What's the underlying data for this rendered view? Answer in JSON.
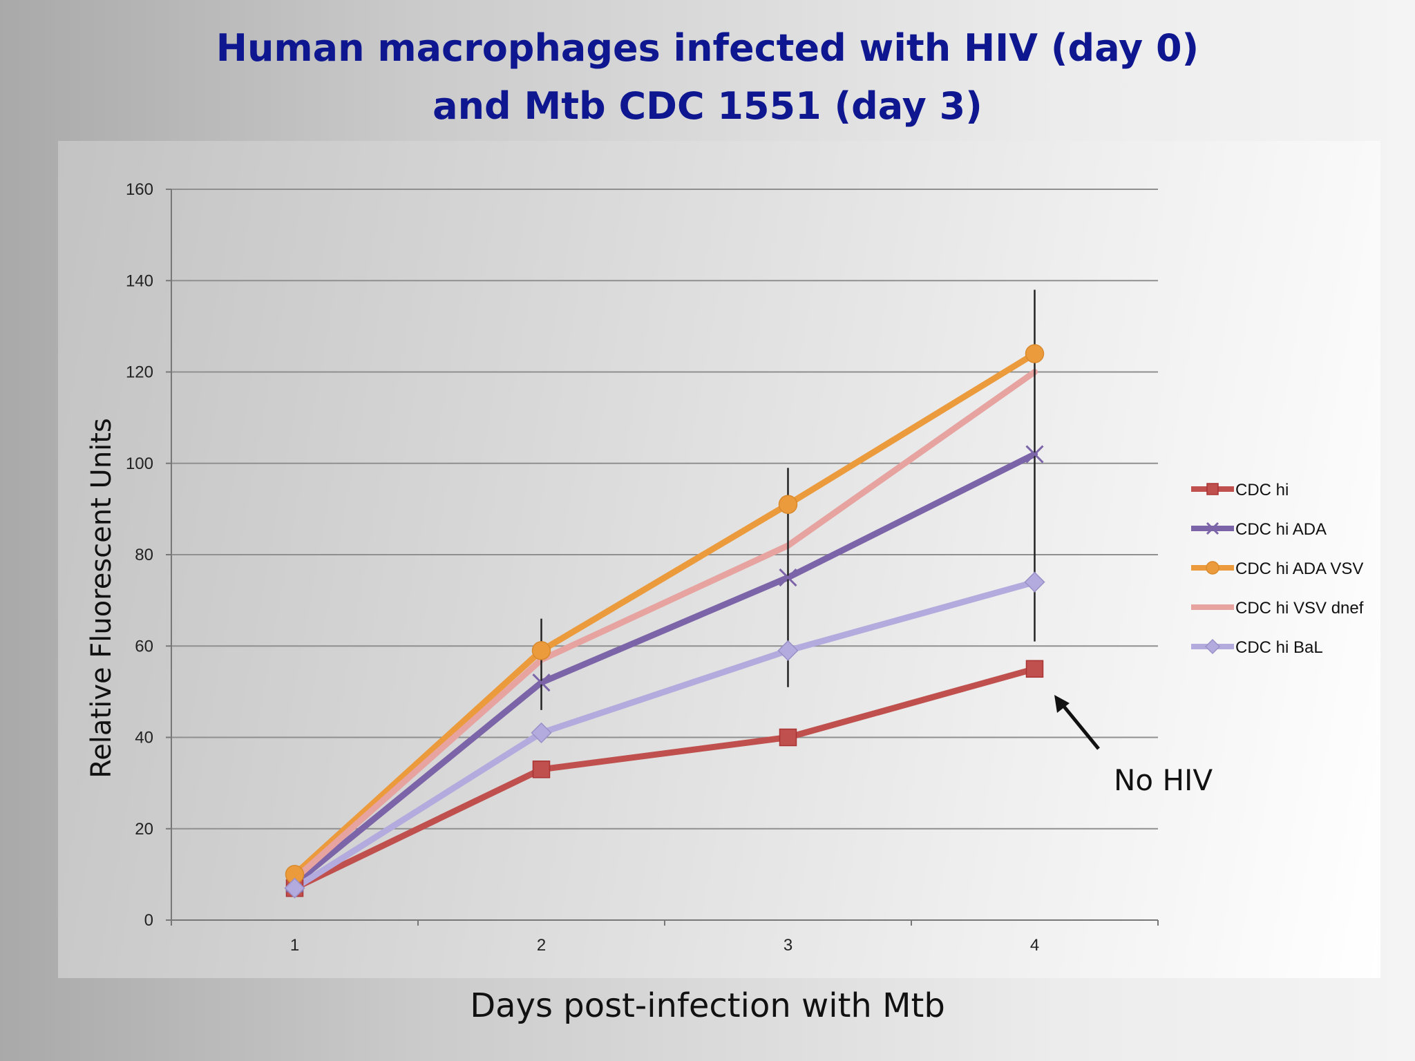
{
  "slide": {
    "title_line1": "Human macrophages infected with HIV (day 0)",
    "title_line2": "and Mtb CDC 1551 (day 3)",
    "x_caption": "Days post-infection with Mtb",
    "annotation": "No HIV"
  },
  "colors": {
    "title": "#0e1790",
    "grid": "#8f8f8f",
    "axis": "#777777",
    "error_bar": "#222222"
  },
  "chart_data": {
    "type": "line",
    "categories": [
      "1",
      "2",
      "3",
      "4"
    ],
    "x": [
      1,
      2,
      3,
      4
    ],
    "ylabel": "Relative Fluorescent Units",
    "xlabel": "Days post-infection with Mtb",
    "ylim": [
      0,
      160
    ],
    "yticks": [
      0,
      20,
      40,
      60,
      80,
      100,
      120,
      140,
      160
    ],
    "grid": true,
    "legend_position": "right",
    "series": [
      {
        "name": "CDC hi",
        "color": "#c0504d",
        "marker": "square",
        "values": [
          7,
          33,
          40,
          55
        ]
      },
      {
        "name": "CDC hi ADA",
        "color": "#7c64a8",
        "marker": "x",
        "values": [
          8,
          52,
          75,
          102
        ]
      },
      {
        "name": "CDC hi ADA VSV",
        "color": "#eb9a3c",
        "marker": "circle",
        "values": [
          10,
          59,
          91,
          124
        ]
      },
      {
        "name": "CDC hi VSV dnef",
        "color": "#e6a3a0",
        "marker": "none",
        "values": [
          9,
          57,
          82,
          120
        ]
      },
      {
        "name": "CDC hi BaL",
        "color": "#b3aadd",
        "marker": "diamond",
        "values": [
          7,
          41,
          59,
          74
        ]
      }
    ],
    "error_bars": [
      {
        "x": 2,
        "low": 46,
        "high": 66
      },
      {
        "x": 3,
        "low": 51,
        "high": 99
      },
      {
        "x": 4,
        "low": 61,
        "high": 138
      }
    ],
    "annotations": [
      {
        "text": "No HIV",
        "target_series": "CDC hi",
        "target_x": 4
      }
    ]
  }
}
